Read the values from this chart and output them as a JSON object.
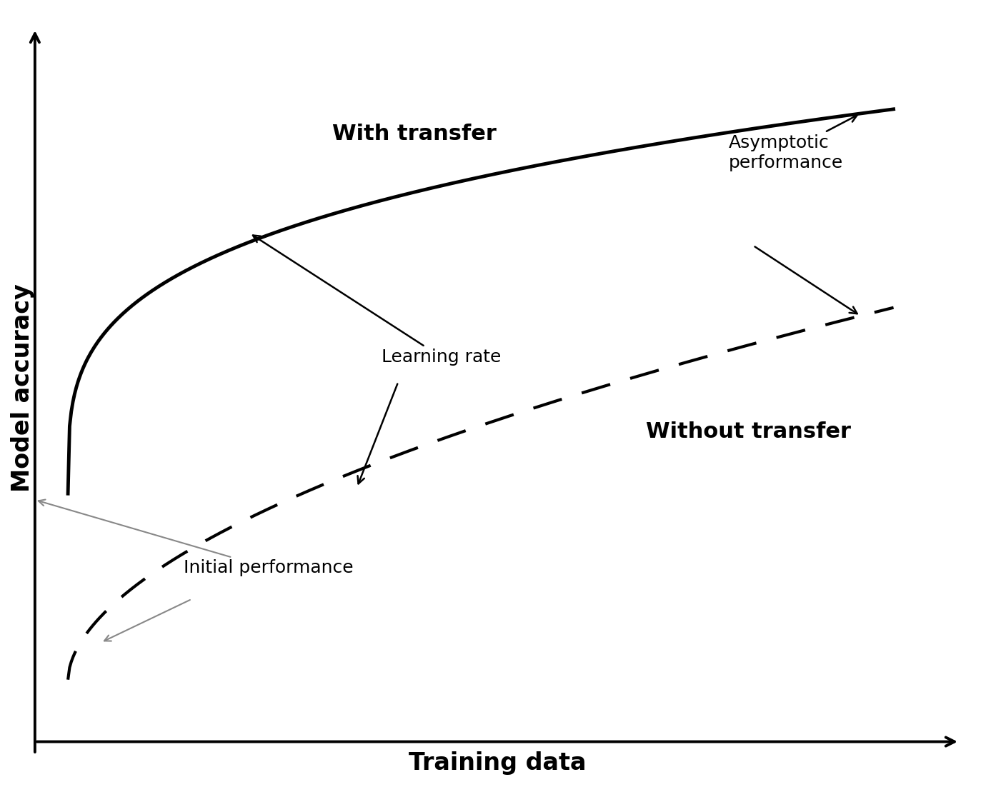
{
  "xlabel": "Training data",
  "ylabel": "Model accuracy",
  "xlabel_fontsize": 24,
  "ylabel_fontsize": 24,
  "xlabel_fontweight": "bold",
  "ylabel_fontweight": "bold",
  "background_color": "#ffffff",
  "with_transfer_label": "With transfer",
  "without_transfer_label": "Without transfer",
  "learning_rate_label": "Learning rate",
  "initial_performance_label": "Initial performance",
  "asymptotic_performance_label": "Asymptotic\nperformance",
  "curve_color": "#000000",
  "dashed_color": "#000000",
  "label_fontsize": 22,
  "annotation_fontsize": 18
}
